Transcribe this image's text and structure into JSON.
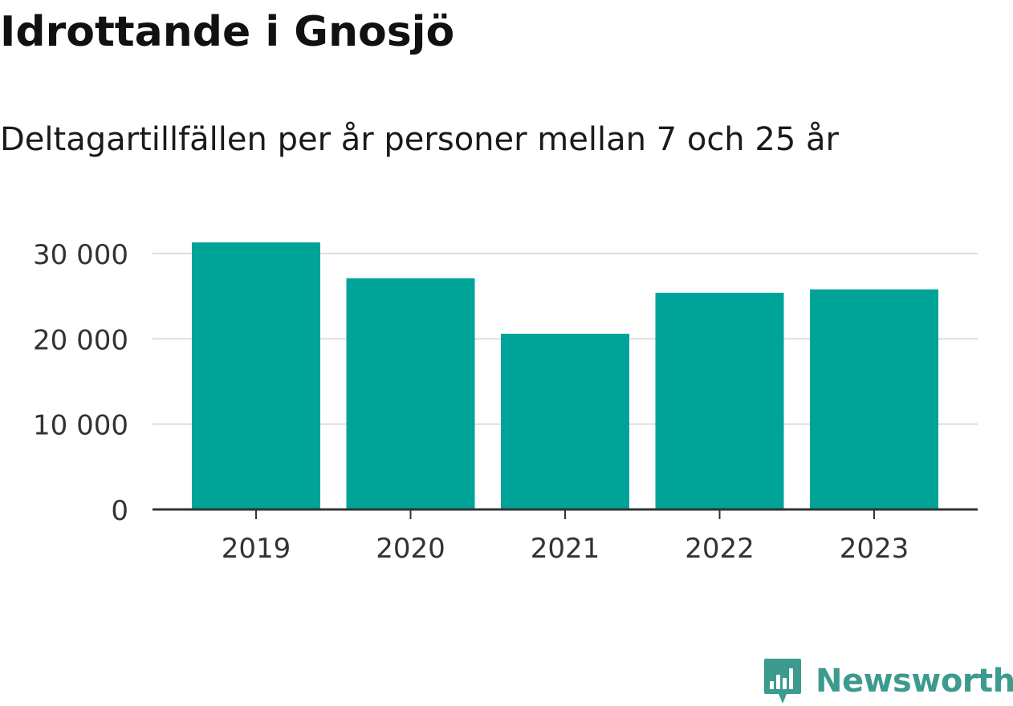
{
  "header": {
    "title": "Idrottande i Gnosjö",
    "subtitle": "Deltagartillfällen per år personer mellan 7 och 25 år"
  },
  "chart_data": {
    "type": "bar",
    "title": "Idrottande i Gnosjö",
    "subtitle": "Deltagartillfällen per år personer mellan 7 och 25 år",
    "xlabel": "",
    "ylabel": "",
    "categories": [
      "2019",
      "2020",
      "2021",
      "2022",
      "2023"
    ],
    "values": [
      31300,
      27100,
      20600,
      25400,
      25800
    ],
    "ylim": [
      0,
      30000
    ],
    "yticks": [
      0,
      10000,
      20000,
      30000
    ],
    "ytick_labels": [
      "0",
      "10 000",
      "20 000",
      "30 000"
    ],
    "grid": true,
    "bar_color": "#00a398",
    "grid_color": "#dddddd",
    "axis_color": "#333333"
  },
  "branding": {
    "logo_text": "Newsworthy",
    "logo_icon": "newsworthy-chart-icon",
    "logo_color": "#3d9a8e"
  }
}
